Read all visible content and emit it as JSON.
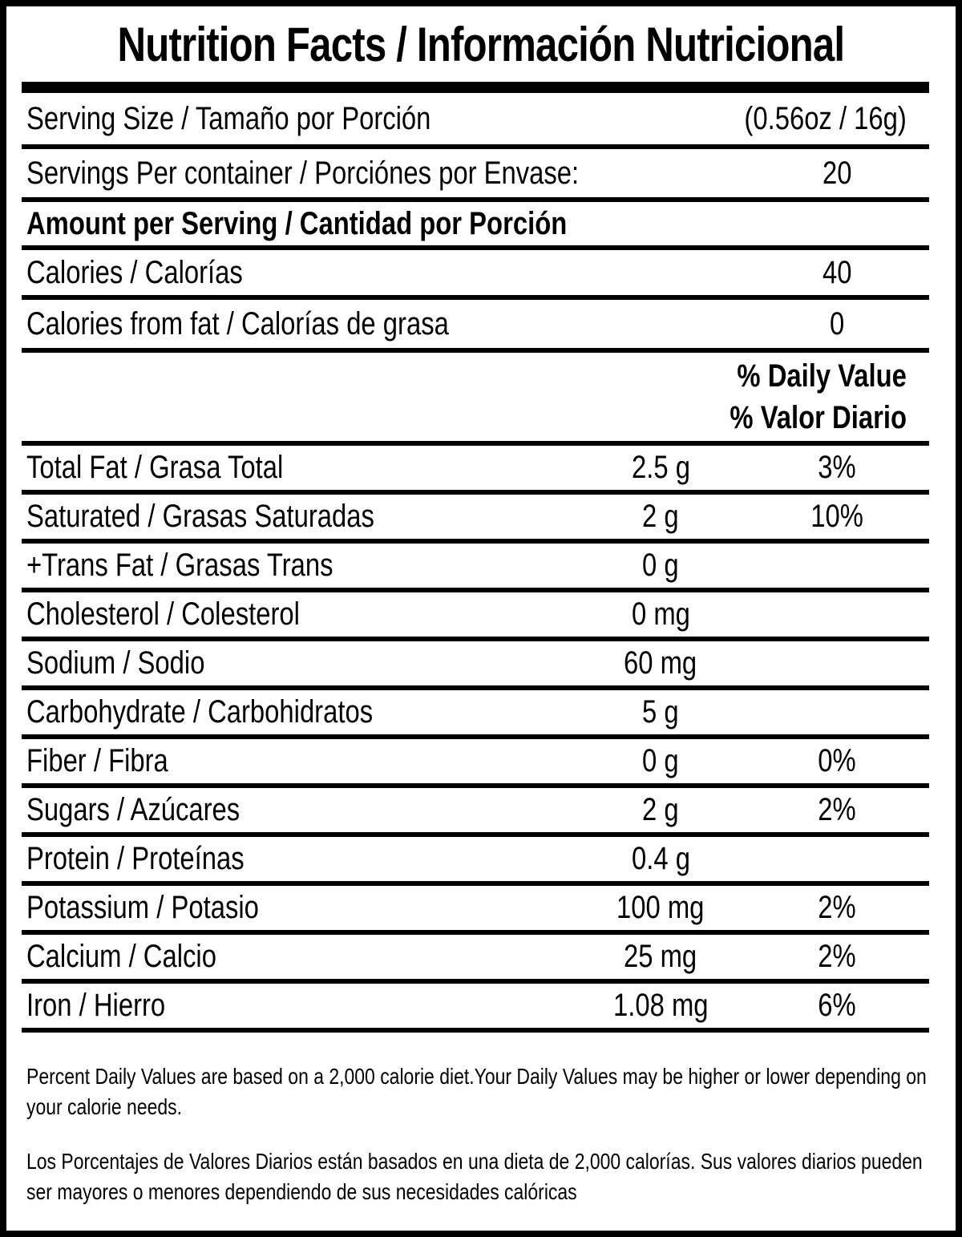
{
  "label": {
    "title": "Nutrition Facts / Información Nutricional",
    "serving": {
      "size_label": "Serving Size / Tamaño por Porción",
      "size_value": "(0.56oz / 16g)",
      "per_container_label": "Servings Per container / Porciónes por Envase:",
      "per_container_value": "20"
    },
    "amount_header": "Amount per Serving / Cantidad por Porción",
    "calories": {
      "label": "Calories / Calorías",
      "value": "40"
    },
    "calories_from_fat": {
      "label": "Calories from fat / Calorías de grasa",
      "value": "0"
    },
    "dv_header": {
      "line1": "% Daily Value",
      "line2": "% Valor Diario"
    },
    "nutrients": [
      {
        "label": "Total Fat / Grasa Total",
        "amount": "2.5 g",
        "dv": "3%"
      },
      {
        "label": "Saturated / Grasas Saturadas",
        "amount": "2 g",
        "dv": "10%"
      },
      {
        "label": "+Trans Fat / Grasas Trans",
        "amount": "0 g",
        "dv": ""
      },
      {
        "label": "Cholesterol / Colesterol",
        "amount": "0 mg",
        "dv": ""
      },
      {
        "label": "Sodium / Sodio",
        "amount": "60 mg",
        "dv": ""
      },
      {
        "label": "Carbohydrate / Carbohidratos",
        "amount": "5 g",
        "dv": ""
      },
      {
        "label": "Fiber / Fibra",
        "amount": "0 g",
        "dv": "0%"
      },
      {
        "label": "Sugars / Azúcares",
        "amount": "2 g",
        "dv": "2%"
      },
      {
        "label": "Protein / Proteínas",
        "amount": "0.4 g",
        "dv": ""
      },
      {
        "label": "Potassium / Potasio",
        "amount": "100 mg",
        "dv": "2%"
      },
      {
        "label": "Calcium / Calcio",
        "amount": "25 mg",
        "dv": "2%"
      },
      {
        "label": "Iron / Hierro",
        "amount": "1.08 mg",
        "dv": "6%"
      }
    ],
    "footnotes": {
      "english": "Percent Daily Values are based on a 2,000 calorie diet.Your Daily Values may be higher or lower depending on your calorie needs.",
      "spanish": "Los Porcentajes de Valores Diarios están basados en una dieta de 2,000 calorías. Sus valores diarios pueden ser mayores o menores dependiendo de sus necesidades calóricas"
    },
    "colors": {
      "ink": "#000000",
      "paper": "#ffffff"
    }
  }
}
